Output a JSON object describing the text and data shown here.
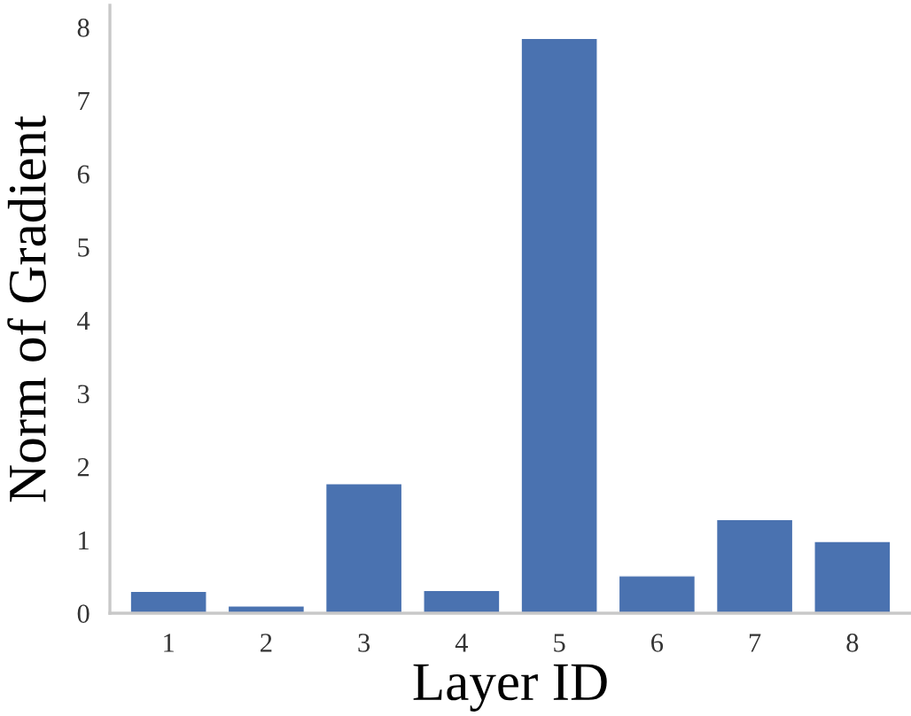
{
  "chart_data": {
    "type": "bar",
    "xlabel": "Layer ID",
    "ylabel": "Norm of Gradient",
    "categories": [
      "1",
      "2",
      "3",
      "4",
      "5",
      "6",
      "7",
      "8"
    ],
    "values": [
      0.3,
      0.1,
      1.77,
      0.31,
      7.85,
      0.51,
      1.28,
      0.98
    ],
    "color": "#4a72b0",
    "ylim": [
      0,
      8.3
    ],
    "yticks": [
      0,
      1,
      2,
      3,
      4,
      5,
      6,
      7,
      8
    ],
    "grid": false,
    "legend": false
  }
}
